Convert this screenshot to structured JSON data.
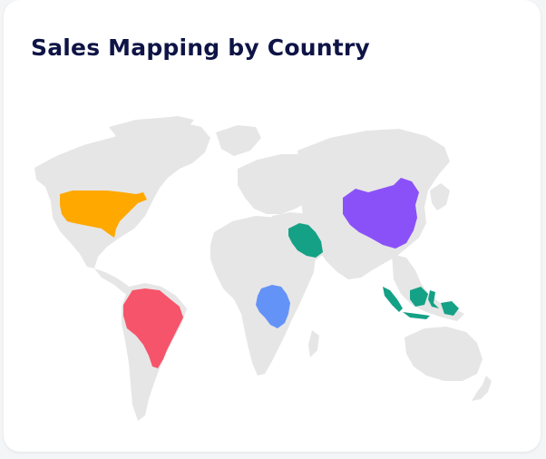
{
  "card": {
    "title": "Sales Mapping by Country"
  },
  "map": {
    "base_color": "#e6e6e6",
    "highlighted_countries": [
      {
        "name": "United States",
        "color": "#FFA800"
      },
      {
        "name": "Brazil",
        "color": "#F6546A"
      },
      {
        "name": "DR Congo",
        "color": "#6493F7"
      },
      {
        "name": "Saudi Arabia",
        "color": "#15A186"
      },
      {
        "name": "China",
        "color": "#8B51F9"
      },
      {
        "name": "Indonesia",
        "color": "#15A186"
      }
    ]
  }
}
